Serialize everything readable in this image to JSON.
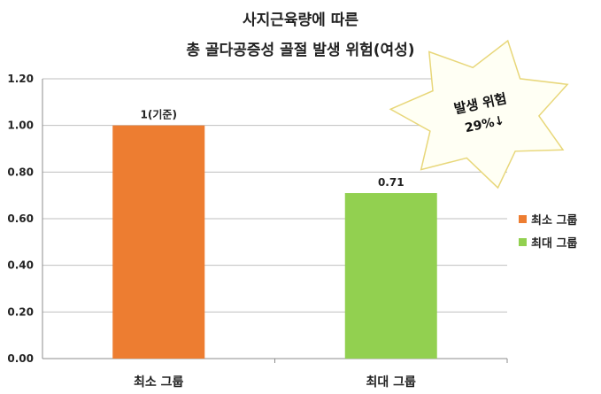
{
  "chart_data": {
    "type": "bar",
    "title": "사지근육량에 따른",
    "subtitle": "총 골다공증성 골절 발생 위험(여성)",
    "categories": [
      "최소 그룹",
      "최대 그룹"
    ],
    "values": [
      1.0,
      0.71
    ],
    "data_labels": [
      "1(기준)",
      "0.71"
    ],
    "colors": [
      "#ed7d31",
      "#92d050"
    ],
    "ylim": [
      0,
      1.2
    ],
    "yticks": [
      0,
      0.2,
      0.4,
      0.6,
      0.8,
      1.0,
      1.2
    ],
    "ytick_labels": [
      "0.00",
      "0.20",
      "0.40",
      "0.60",
      "0.80",
      "1.00",
      "1.20"
    ],
    "grid": true,
    "legend": {
      "position": "right",
      "entries": [
        {
          "label": "최소 그룹",
          "color": "#ed7d31"
        },
        {
          "label": "최대 그룹",
          "color": "#92d050"
        }
      ]
    },
    "annotation": {
      "shape": "star",
      "line1": "발생 위험",
      "line2": "29%↓"
    }
  }
}
